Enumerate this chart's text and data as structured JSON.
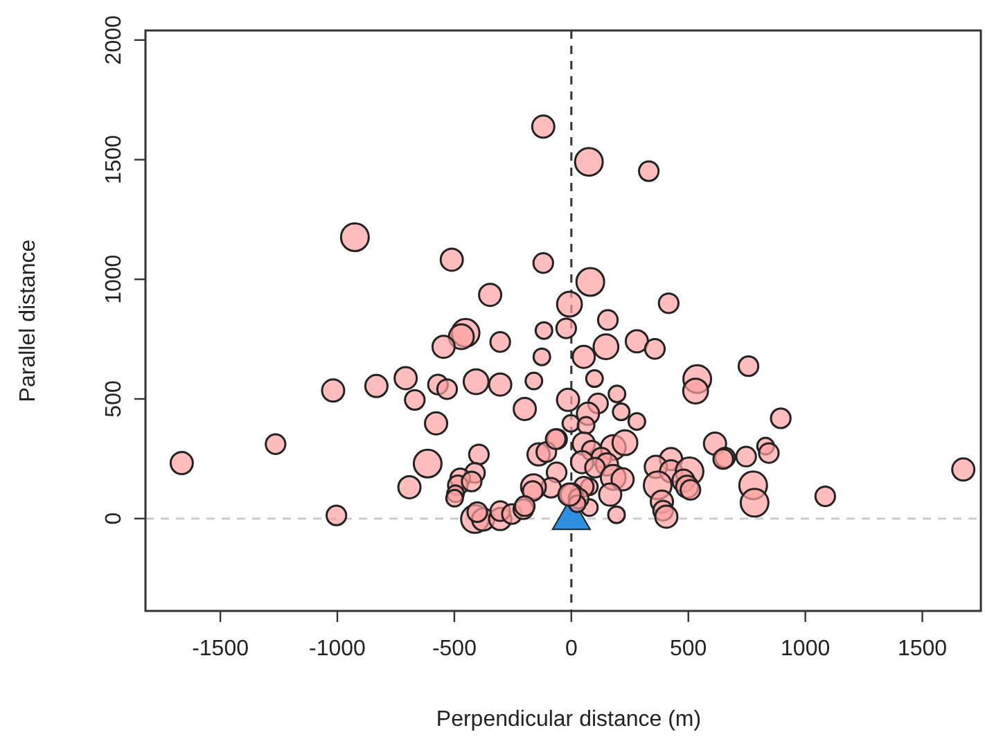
{
  "chart_data": {
    "type": "bubble",
    "xlabel": "Perpendicular distance (m)",
    "ylabel": "Parallel distance",
    "xlim": [
      -1820,
      1750
    ],
    "ylim": [
      -386,
      2040
    ],
    "xticks": [
      -1500,
      -1000,
      -500,
      0,
      500,
      1000,
      1500
    ],
    "yticks": [
      0,
      500,
      1000,
      1500,
      2000
    ],
    "ref_lines": [
      {
        "axis": "x",
        "value": 0,
        "color": "#333333",
        "line_style": "dashed"
      },
      {
        "axis": "y",
        "value": 0,
        "color": "#cccccc",
        "line_style": "dashed"
      }
    ],
    "series": [
      {
        "color": "#ff9f9f",
        "x": [
          -120,
          -925,
          -511,
          -120,
          -347,
          -8,
          -117,
          -22,
          -452,
          -470,
          -546,
          -304,
          -126,
          75,
          331,
          81,
          416,
          156,
          148,
          280,
          357,
          53,
          757,
          538,
          531,
          99,
          -14,
          114,
          195,
          71,
          213,
          -2,
          63,
          280,
          895,
          53,
          179,
          229,
          87,
          128,
          46,
          152,
          101,
          179,
          219,
          -61,
          614,
          657,
          649,
          747,
          830,
          844,
          426,
          361,
          426,
          505,
          369,
          479,
          495,
          509,
          777,
          783,
          1085,
          1675,
          387,
          392,
          406,
          193,
          166,
          77,
          77,
          53,
          2,
          31,
          25,
          -1665,
          -1264,
          -1004,
          -1018,
          -833,
          -708,
          -669,
          -570,
          -531,
          -407,
          -304,
          -160,
          -199,
          -578,
          -395,
          -614,
          -692,
          -412,
          -475,
          -485,
          -495,
          -499,
          -426,
          -140,
          -107,
          -67,
          -63,
          -87,
          -162,
          -165,
          -8,
          -412,
          -377,
          -402,
          -304,
          -304,
          -254,
          -205,
          -199
        ],
        "values": [
          1638,
          1176,
          1082,
          1068,
          935,
          896,
          786,
          795,
          776,
          760,
          718,
          738,
          676,
          1491,
          1452,
          989,
          900,
          830,
          718,
          741,
          709,
          676,
          637,
          583,
          533,
          585,
          496,
          481,
          521,
          438,
          446,
          398,
          390,
          406,
          419,
          313,
          297,
          317,
          284,
          255,
          236,
          226,
          213,
          172,
          164,
          332,
          313,
          255,
          249,
          259,
          303,
          274,
          249,
          216,
          197,
          197,
          139,
          158,
          133,
          120,
          139,
          66,
          93,
          205,
          71,
          33,
          8,
          16,
          100,
          46,
          133,
          133,
          100,
          84,
          62,
          232,
          311,
          13,
          535,
          554,
          587,
          496,
          560,
          541,
          572,
          560,
          575,
          458,
          398,
          268,
          230,
          131,
          191,
          168,
          139,
          104,
          85,
          155,
          268,
          278,
          332,
          193,
          129,
          133,
          115,
          100,
          -2,
          -4,
          27,
          -2,
          31,
          19,
          39,
          52
        ],
        "sizes": [
          0.64,
          1,
          0.64,
          0.5,
          0.64,
          0.8,
          0.36,
          0.5,
          1,
          0.8,
          0.64,
          0.5,
          0.36,
          1,
          0.5,
          1,
          0.5,
          0.5,
          0.8,
          0.64,
          0.5,
          0.64,
          0.5,
          1,
          0.8,
          0.36,
          0.64,
          0.5,
          0.36,
          0.64,
          0.36,
          0.36,
          0.36,
          0.36,
          0.5,
          0.64,
          0.8,
          0.8,
          0.5,
          0.5,
          0.64,
          0.64,
          0.5,
          0.8,
          0.64,
          0.5,
          0.64,
          0.5,
          0.5,
          0.5,
          0.36,
          0.5,
          0.64,
          0.64,
          0.64,
          1,
          1,
          0.64,
          0.64,
          0.5,
          1,
          1,
          0.5,
          0.64,
          0.64,
          0.5,
          0.64,
          0.36,
          0.64,
          0.36,
          0.36,
          0.5,
          0.64,
          0.5,
          0.36,
          0.64,
          0.5,
          0.5,
          0.64,
          0.64,
          0.64,
          0.5,
          0.5,
          0.5,
          0.8,
          0.64,
          0.36,
          0.64,
          0.64,
          0.5,
          1,
          0.64,
          0.5,
          0.5,
          0.5,
          0.36,
          0.36,
          0.5,
          0.64,
          0.5,
          0.5,
          0.5,
          0.5,
          0.8,
          0.5,
          0.64,
          1,
          0.64,
          0.5,
          0.64,
          0.5,
          0.5,
          0.5,
          0.5
        ]
      },
      {
        "type": "scatter",
        "marker": "triangle",
        "color": "#2f8fe0",
        "x": [
          0
        ],
        "values": [
          0
        ]
      }
    ]
  }
}
